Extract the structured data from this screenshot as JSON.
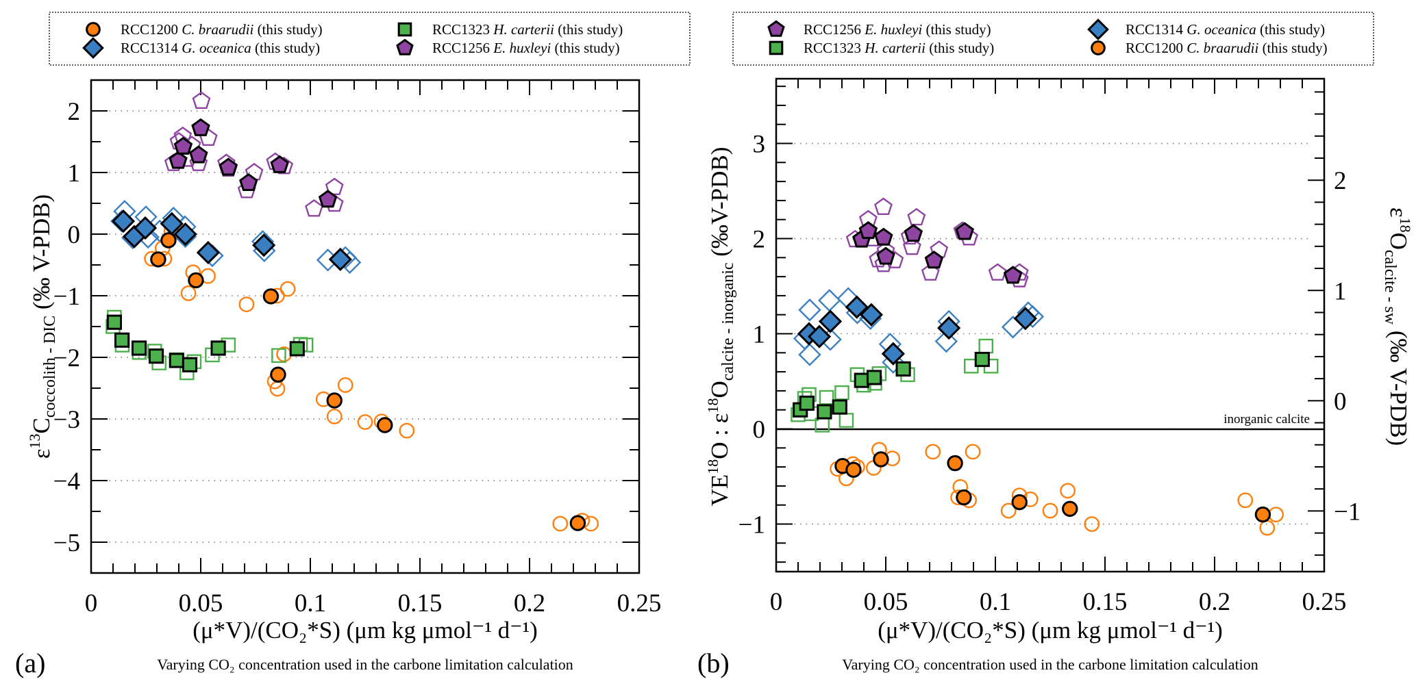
{
  "figure": {
    "panel_a_label": "(a)",
    "panel_b_label": "(b)",
    "subtitle_a": "Varying CO₂ concentration used in the carbone limitation calculation",
    "subtitle_b": "Varying CO₂ concentration used in the carbone limitation calculation"
  },
  "species": {
    "braarudii": {
      "strain": "RCC1200",
      "name": "C. braarudii",
      "suffix": "(this study)",
      "color": "#ff7f0e",
      "shape": "circle"
    },
    "oceanica": {
      "strain": "RCC1314",
      "name": "G. oceanica",
      "suffix": "(this study)",
      "color": "#3a7fc1",
      "shape": "diamond"
    },
    "carterii": {
      "strain": "RCC1323",
      "name": "H. carterii",
      "suffix": "(this study)",
      "color": "#4cb04c",
      "shape": "square"
    },
    "huxleyi": {
      "strain": "RCC1256",
      "name": "E. huxleyi",
      "suffix": "(this study)",
      "color": "#8e44a0",
      "shape": "pentagon"
    }
  },
  "chart_data": [
    {
      "type": "scatter",
      "panel": "a",
      "legend_order": [
        "braarudii",
        "carterii",
        "oceanica",
        "huxleyi"
      ],
      "legend_placement": "top (above plot, 2 columns)",
      "xlabel": "(μ*V)/(CO₂*S) (μm kg μmol⁻¹ d⁻¹)",
      "ylabel": "ε¹³C coccolith - DIC (‰ V-PDB)",
      "ylabel_main": "ε",
      "ylabel_sup": "13",
      "ylabel_base": "C",
      "ylabel_sub": "coccolith - DIC",
      "ylabel_unit": " (‰ V-PDB)",
      "xlim": [
        0,
        0.25
      ],
      "ylim": [
        -5.5,
        2.5
      ],
      "xticks": [
        0,
        0.05,
        0.1,
        0.15,
        0.2,
        0.25
      ],
      "xtick_labels": [
        "0",
        "0.05",
        "0.1",
        "0.15",
        "0.2",
        "0.25"
      ],
      "yticks": [
        -5,
        -4,
        -3,
        -2,
        -1,
        0,
        1,
        2
      ],
      "ytick_labels": [
        "−5",
        "−4",
        "−3",
        "−2",
        "−1",
        "0",
        "1",
        "2"
      ],
      "grid": "horizontal dotted at major y ticks",
      "series": [
        {
          "species": "huxleyi",
          "kind": "mean",
          "points": [
            [
              0.0397,
              1.19
            ],
            [
              0.042,
              1.42
            ],
            [
              0.05,
              1.72
            ],
            [
              0.049,
              1.28
            ],
            [
              0.0626,
              1.08
            ],
            [
              0.0718,
              0.83
            ],
            [
              0.086,
              1.12
            ],
            [
              0.108,
              0.56
            ]
          ]
        },
        {
          "species": "huxleyi",
          "kind": "replicate",
          "points": [
            [
              0.0503,
              2.16
            ],
            [
              0.0418,
              1.59
            ],
            [
              0.0535,
              1.56
            ],
            [
              0.0376,
              1.15
            ],
            [
              0.049,
              1.15
            ],
            [
              0.046,
              1.44
            ],
            [
              0.0617,
              1.15
            ],
            [
              0.0626,
              1.06
            ],
            [
              0.0744,
              1.0
            ],
            [
              0.071,
              0.71
            ],
            [
              0.084,
              1.17
            ],
            [
              0.088,
              1.1
            ],
            [
              0.1017,
              0.41
            ],
            [
              0.111,
              0.76
            ],
            [
              0.111,
              0.49
            ],
            [
              0.04,
              1.5
            ],
            [
              0.044,
              1.22
            ]
          ]
        },
        {
          "species": "oceanica",
          "kind": "mean",
          "points": [
            [
              0.0147,
              0.21
            ],
            [
              0.0197,
              -0.04
            ],
            [
              0.0247,
              0.1
            ],
            [
              0.0368,
              0.17
            ],
            [
              0.043,
              0.0
            ],
            [
              0.0534,
              -0.3
            ],
            [
              0.0788,
              -0.18
            ],
            [
              0.1137,
              -0.41
            ]
          ]
        },
        {
          "species": "oceanica",
          "kind": "replicate",
          "points": [
            [
              0.0153,
              0.37
            ],
            [
              0.025,
              0.28
            ],
            [
              0.014,
              0.21
            ],
            [
              0.019,
              -0.06
            ],
            [
              0.0313,
              0.05
            ],
            [
              0.0376,
              0.26
            ],
            [
              0.0428,
              0.12
            ],
            [
              0.043,
              -0.04
            ],
            [
              0.0553,
              -0.35
            ],
            [
              0.0783,
              -0.12
            ],
            [
              0.079,
              -0.27
            ],
            [
              0.108,
              -0.42
            ],
            [
              0.118,
              -0.46
            ],
            [
              0.116,
              -0.38
            ],
            [
              0.026,
              -0.05
            ]
          ]
        },
        {
          "species": "braarudii",
          "kind": "mean",
          "points": [
            [
              0.0353,
              -0.1
            ],
            [
              0.0306,
              -0.41
            ],
            [
              0.0478,
              -0.75
            ],
            [
              0.082,
              -1.01
            ],
            [
              0.0853,
              -2.28
            ],
            [
              0.111,
              -2.7
            ],
            [
              0.134,
              -3.1
            ],
            [
              0.222,
              -4.69
            ]
          ]
        },
        {
          "species": "braarudii",
          "kind": "replicate",
          "points": [
            [
              0.0366,
              0.05
            ],
            [
              0.0326,
              -0.23
            ],
            [
              0.0277,
              -0.4
            ],
            [
              0.0334,
              -0.4
            ],
            [
              0.0465,
              -0.62
            ],
            [
              0.0533,
              -0.68
            ],
            [
              0.0444,
              -0.96
            ],
            [
              0.0709,
              -1.14
            ],
            [
              0.0848,
              -1.0
            ],
            [
              0.0897,
              -0.89
            ],
            [
              0.088,
              -1.95
            ],
            [
              0.0838,
              -2.39
            ],
            [
              0.085,
              -2.51
            ],
            [
              0.116,
              -2.45
            ],
            [
              0.106,
              -2.68
            ],
            [
              0.111,
              -2.96
            ],
            [
              0.125,
              -3.05
            ],
            [
              0.1325,
              -3.04
            ],
            [
              0.144,
              -3.19
            ],
            [
              0.214,
              -4.7
            ],
            [
              0.224,
              -4.65
            ],
            [
              0.228,
              -4.7
            ]
          ]
        },
        {
          "species": "carterii",
          "kind": "mean",
          "points": [
            [
              0.0106,
              -1.43
            ],
            [
              0.0141,
              -1.72
            ],
            [
              0.0219,
              -1.85
            ],
            [
              0.0297,
              -1.98
            ],
            [
              0.039,
              -2.05
            ],
            [
              0.045,
              -2.12
            ],
            [
              0.058,
              -1.85
            ],
            [
              0.094,
              -1.86
            ]
          ]
        },
        {
          "species": "carterii",
          "kind": "replicate",
          "points": [
            [
              0.0106,
              -1.35
            ],
            [
              0.01,
              -1.5
            ],
            [
              0.0142,
              -1.8
            ],
            [
              0.022,
              -1.92
            ],
            [
              0.029,
              -1.9
            ],
            [
              0.031,
              -2.09
            ],
            [
              0.039,
              -2.04
            ],
            [
              0.0437,
              -2.25
            ],
            [
              0.047,
              -2.07
            ],
            [
              0.0553,
              -1.96
            ],
            [
              0.0626,
              -1.8
            ],
            [
              0.0856,
              -1.97
            ],
            [
              0.0955,
              -1.79
            ],
            [
              0.098,
              -1.8
            ]
          ]
        }
      ]
    },
    {
      "type": "scatter",
      "panel": "b",
      "legend_order": [
        "huxleyi",
        "oceanica",
        "carterii",
        "braarudii"
      ],
      "legend_placement": "top (above plot, 2 columns)",
      "xlabel": "(μ*V)/(CO₂*S) (μm kg μmol⁻¹ d⁻¹)",
      "ylabel": "VE¹⁸O : ε¹⁸O calcite - inorganic (‰V-PDB)",
      "ylabel_p1": "VE",
      "ylabel_sup1": "18",
      "ylabel_p2": "O : ε",
      "ylabel_sup2": "18",
      "ylabel_p3": "O",
      "ylabel_sub": "calcite - inorganic",
      "ylabel_unit": " (‰V-PDB)",
      "y2label": "ε¹⁸O calcite - sw (‰ V-PDB)",
      "y2label_main": "ε",
      "y2label_sup": "18",
      "y2label_base": "O",
      "y2label_sub": "calcite - sw",
      "y2label_unit": " (‰ V-PDB)",
      "xlim": [
        0,
        0.25
      ],
      "ylim": [
        -1.5,
        3.68
      ],
      "y2lim": [
        -1.55,
        2.92
      ],
      "xticks": [
        0,
        0.05,
        0.1,
        0.15,
        0.2,
        0.25
      ],
      "xtick_labels": [
        "0",
        "0.05",
        "0.1",
        "0.15",
        "0.2",
        "0.25"
      ],
      "yticks": [
        -1,
        0,
        1,
        2,
        3
      ],
      "ytick_labels": [
        "−1",
        "0",
        "1",
        "2",
        "3"
      ],
      "y2ticks": [
        -1,
        0,
        1,
        2
      ],
      "y2tick_labels": [
        "−1",
        "0",
        "1",
        "2"
      ],
      "grid": "horizontal dotted at major y ticks",
      "reference_line": {
        "y": 0,
        "label": "inorganic calcite"
      },
      "series": [
        {
          "species": "huxleyi",
          "kind": "mean",
          "points": [
            [
              0.039,
              1.99
            ],
            [
              0.042,
              2.08
            ],
            [
              0.049,
              2.01
            ],
            [
              0.05,
              1.81
            ],
            [
              0.0626,
              2.05
            ],
            [
              0.072,
              1.77
            ],
            [
              0.086,
              2.07
            ],
            [
              0.108,
              1.61
            ]
          ]
        },
        {
          "species": "huxleyi",
          "kind": "replicate",
          "points": [
            [
              0.0489,
              2.33
            ],
            [
              0.042,
              2.2
            ],
            [
              0.036,
              1.99
            ],
            [
              0.064,
              2.22
            ],
            [
              0.061,
              2.02
            ],
            [
              0.062,
              1.91
            ],
            [
              0.05,
              1.87
            ],
            [
              0.0465,
              1.78
            ],
            [
              0.054,
              1.77
            ],
            [
              0.049,
              1.73
            ],
            [
              0.0743,
              1.88
            ],
            [
              0.0704,
              1.64
            ],
            [
              0.085,
              2.08
            ],
            [
              0.088,
              2.01
            ],
            [
              0.101,
              1.64
            ],
            [
              0.111,
              1.57
            ],
            [
              0.111,
              1.64
            ],
            [
              0.044,
              2.0
            ]
          ]
        },
        {
          "species": "oceanica",
          "kind": "mean",
          "points": [
            [
              0.015,
              1.0
            ],
            [
              0.0197,
              0.97
            ],
            [
              0.0247,
              1.13
            ],
            [
              0.0368,
              1.28
            ],
            [
              0.0434,
              1.2
            ],
            [
              0.0534,
              0.79
            ],
            [
              0.0788,
              1.06
            ],
            [
              0.1137,
              1.16
            ]
          ]
        },
        {
          "species": "oceanica",
          "kind": "replicate",
          "points": [
            [
              0.0153,
              1.25
            ],
            [
              0.0153,
              0.78
            ],
            [
              0.0243,
              1.35
            ],
            [
              0.0329,
              1.37
            ],
            [
              0.013,
              0.95
            ],
            [
              0.0247,
              0.94
            ],
            [
              0.037,
              1.22
            ],
            [
              0.043,
              1.16
            ],
            [
              0.052,
              0.89
            ],
            [
              0.0534,
              0.7
            ],
            [
              0.0788,
              1.13
            ],
            [
              0.0776,
              0.92
            ],
            [
              0.108,
              1.07
            ],
            [
              0.117,
              1.18
            ],
            [
              0.115,
              1.22
            ]
          ]
        },
        {
          "species": "carterii",
          "kind": "mean",
          "points": [
            [
              0.011,
              0.2
            ],
            [
              0.014,
              0.27
            ],
            [
              0.022,
              0.18
            ],
            [
              0.029,
              0.23
            ],
            [
              0.039,
              0.51
            ],
            [
              0.0447,
              0.54
            ],
            [
              0.058,
              0.63
            ],
            [
              0.094,
              0.73
            ]
          ]
        },
        {
          "species": "carterii",
          "kind": "replicate",
          "points": [
            [
              0.01,
              0.15
            ],
            [
              0.013,
              0.32
            ],
            [
              0.015,
              0.36
            ],
            [
              0.016,
              0.16
            ],
            [
              0.023,
              0.33
            ],
            [
              0.021,
              0.04
            ],
            [
              0.03,
              0.38
            ],
            [
              0.032,
              0.09
            ],
            [
              0.037,
              0.57
            ],
            [
              0.04,
              0.46
            ],
            [
              0.045,
              0.48
            ],
            [
              0.047,
              0.58
            ],
            [
              0.06,
              0.57
            ],
            [
              0.0957,
              0.87
            ],
            [
              0.089,
              0.66
            ],
            [
              0.098,
              0.66
            ]
          ]
        },
        {
          "species": "braarudii",
          "kind": "mean",
          "points": [
            [
              0.0303,
              -0.39
            ],
            [
              0.0353,
              -0.43
            ],
            [
              0.0478,
              -0.32
            ],
            [
              0.0816,
              -0.36
            ],
            [
              0.0856,
              -0.72
            ],
            [
              0.111,
              -0.77
            ],
            [
              0.134,
              -0.84
            ],
            [
              0.222,
              -0.9
            ]
          ]
        },
        {
          "species": "braarudii",
          "kind": "replicate",
          "points": [
            [
              0.028,
              -0.42
            ],
            [
              0.032,
              -0.52
            ],
            [
              0.035,
              -0.37
            ],
            [
              0.037,
              -0.4
            ],
            [
              0.0445,
              -0.41
            ],
            [
              0.047,
              -0.22
            ],
            [
              0.053,
              -0.31
            ],
            [
              0.0715,
              -0.24
            ],
            [
              0.0897,
              -0.24
            ],
            [
              0.084,
              -0.61
            ],
            [
              0.088,
              -0.75
            ],
            [
              0.083,
              -0.72
            ],
            [
              0.106,
              -0.86
            ],
            [
              0.116,
              -0.74
            ],
            [
              0.111,
              -0.7
            ],
            [
              0.125,
              -0.86
            ],
            [
              0.133,
              -0.65
            ],
            [
              0.144,
              -1.0
            ],
            [
              0.214,
              -0.75
            ],
            [
              0.228,
              -0.9
            ],
            [
              0.224,
              -1.04
            ]
          ]
        }
      ]
    }
  ]
}
